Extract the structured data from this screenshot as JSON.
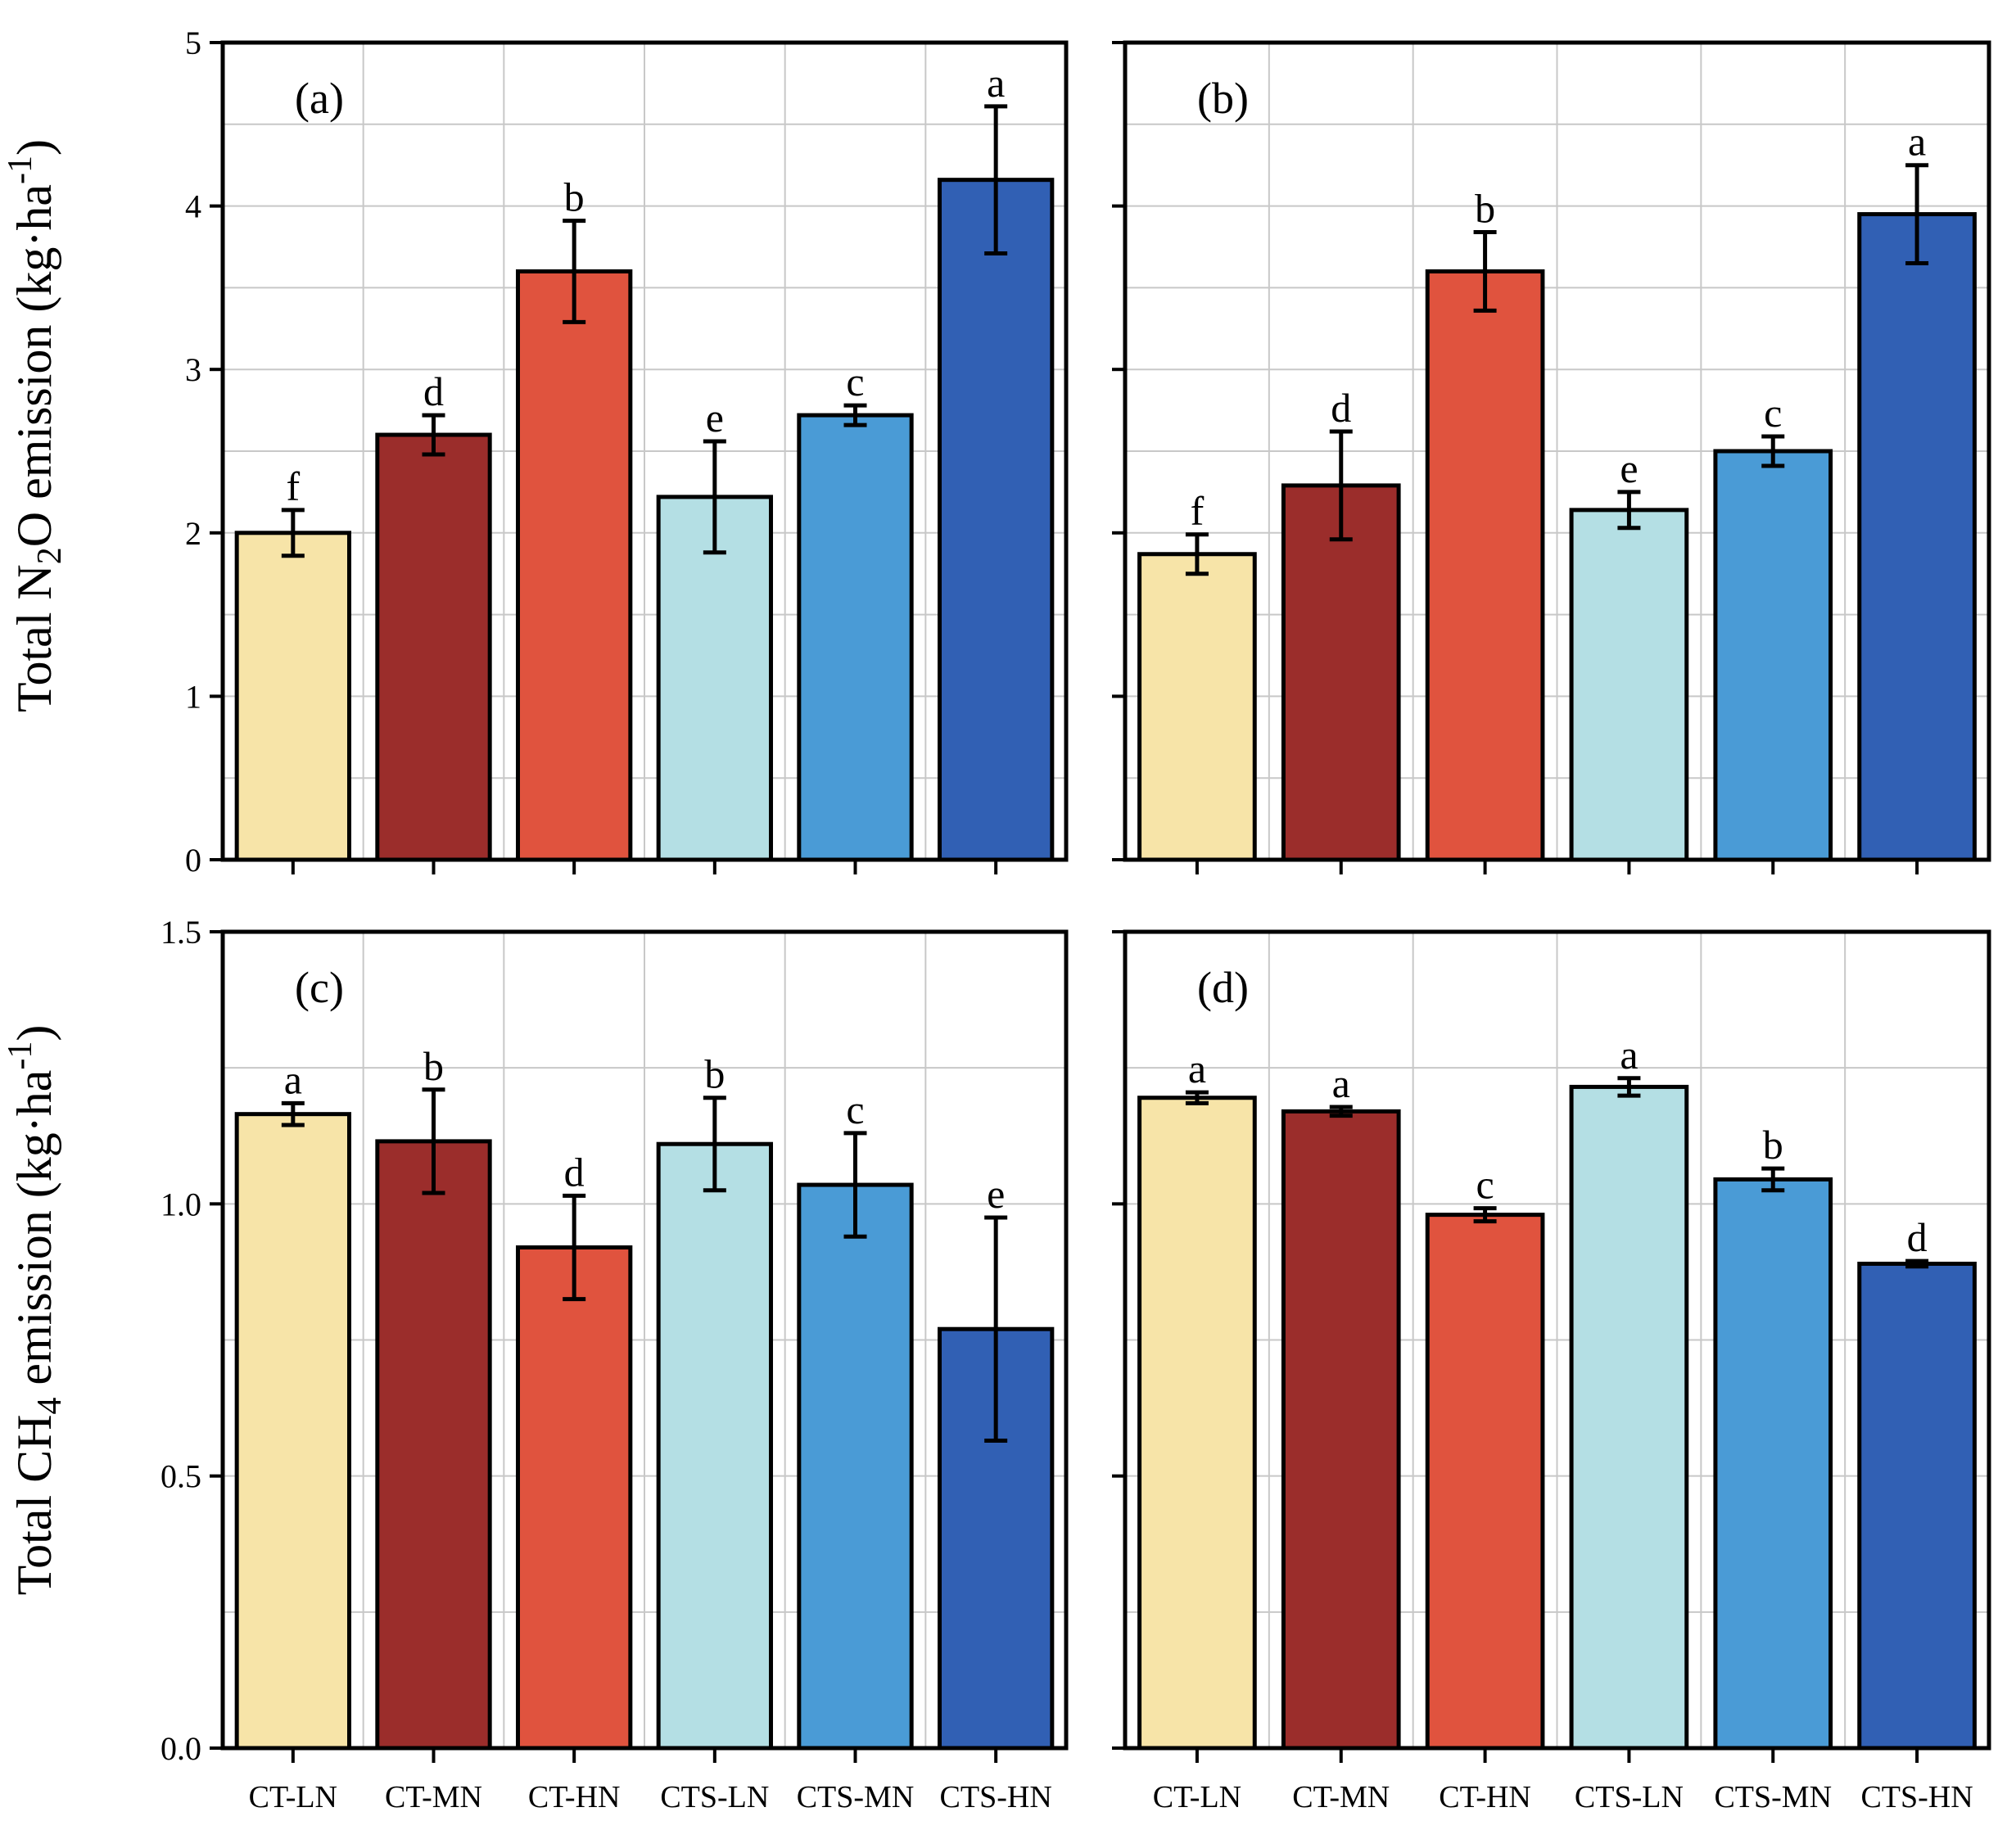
{
  "figure": {
    "categories": [
      "CT-LN",
      "CT-MN",
      "CT-HN",
      "CTS-LN",
      "CTS-MN",
      "CTS-HN"
    ],
    "colors": {
      "CT-LN": "#F7E4A8",
      "CT-MN": "#9B2D2B",
      "CT-HN": "#E0533E",
      "CTS-LN": "#B4DFE4",
      "CTS-MN": "#4A9BD6",
      "CTS-HN": "#3160B4"
    },
    "y_title_top": {
      "prefix": "Total N",
      "sub": "2",
      "mid": "O emission (kg·ha",
      "sup": "-1",
      "suffix": ")"
    },
    "y_title_bottom": {
      "prefix": "Total CH",
      "sub": "4",
      "mid": " emission (kg·ha",
      "sup": "-1",
      "suffix": ")"
    }
  },
  "chart_data": [
    {
      "panel": "(a)",
      "type": "bar",
      "ylabel": "Total N2O emission (kg·ha-1)",
      "ylim": [
        0,
        5
      ],
      "yticks": [
        "0",
        "1",
        "2",
        "3",
        "4",
        "5"
      ],
      "grid": true,
      "values": [
        2.0,
        2.6,
        3.6,
        2.22,
        2.72,
        4.16
      ],
      "errors": [
        0.14,
        0.12,
        0.31,
        0.34,
        0.06,
        0.45
      ],
      "letters": [
        "f",
        "d",
        "b",
        "e",
        "c",
        "a"
      ]
    },
    {
      "panel": "(b)",
      "type": "bar",
      "ylabel": "",
      "ylim": [
        0,
        5
      ],
      "yticks": [
        "",
        "",
        "",
        "",
        "",
        ""
      ],
      "grid": true,
      "values": [
        1.87,
        2.29,
        3.6,
        2.14,
        2.5,
        3.95
      ],
      "errors": [
        0.12,
        0.33,
        0.24,
        0.11,
        0.09,
        0.3
      ],
      "letters": [
        "f",
        "d",
        "b",
        "e",
        "c",
        "a"
      ]
    },
    {
      "panel": "(c)",
      "type": "bar",
      "ylabel": "Total CH4 emission (kg·ha-1)",
      "ylim": [
        0,
        1.5
      ],
      "yticks": [
        "0.0",
        "0.5",
        "1.0",
        "1.5"
      ],
      "grid": true,
      "values": [
        1.165,
        1.115,
        0.92,
        1.11,
        1.035,
        0.77
      ],
      "errors": [
        0.02,
        0.095,
        0.095,
        0.085,
        0.095,
        0.205
      ],
      "letters": [
        "a",
        "b",
        "d",
        "b",
        "c",
        "e"
      ]
    },
    {
      "panel": "(d)",
      "type": "bar",
      "ylabel": "",
      "ylim": [
        0,
        1.5
      ],
      "yticks": [
        "",
        "",
        "",
        ""
      ],
      "grid": true,
      "values": [
        1.195,
        1.17,
        0.98,
        1.215,
        1.045,
        0.89
      ],
      "errors": [
        0.01,
        0.008,
        0.012,
        0.016,
        0.02,
        0.005
      ],
      "letters": [
        "a",
        "a",
        "c",
        "a",
        "b",
        "d"
      ]
    }
  ]
}
